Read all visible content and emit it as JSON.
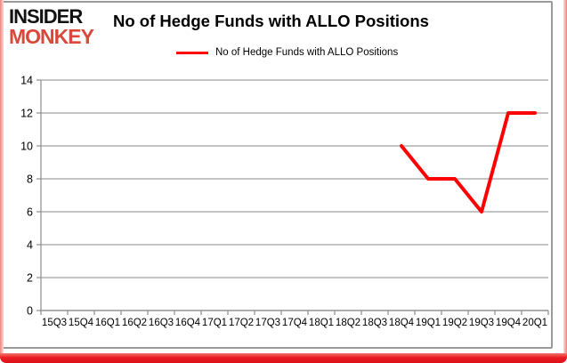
{
  "logo": {
    "line1": "INSIDER",
    "line2": "MONKEY"
  },
  "header": {
    "title": "No of Hedge Funds with ALLO Positions"
  },
  "legend": {
    "label": "No of Hedge Funds with ALLO Positions"
  },
  "colors": {
    "series": "#ff0000",
    "logo_accent": "#d9483b",
    "grid": "#a1a1a1",
    "axis": "#8c8c8c",
    "tick_text": "#000000",
    "frame_red": "#e81b22",
    "frame_pink": "#ee847d",
    "border_gray": "#9a9a9a"
  },
  "chart_data": {
    "type": "line",
    "title": "No of Hedge Funds with ALLO Positions",
    "categories": [
      "15Q3",
      "15Q4",
      "16Q1",
      "16Q2",
      "16Q3",
      "16Q4",
      "17Q1",
      "17Q2",
      "17Q3",
      "17Q4",
      "18Q1",
      "18Q2",
      "18Q3",
      "18Q4",
      "19Q1",
      "19Q2",
      "19Q3",
      "19Q4",
      "20Q1"
    ],
    "series": [
      {
        "name": "No of Hedge Funds with ALLO Positions",
        "color": "#ff0000",
        "values": [
          null,
          null,
          null,
          null,
          null,
          null,
          null,
          null,
          null,
          null,
          null,
          null,
          null,
          10,
          8,
          8,
          6,
          12,
          12
        ]
      }
    ],
    "xlabel": "",
    "ylabel": "",
    "ylim": [
      0,
      14
    ],
    "ytick_step": 2,
    "yticks": [
      0,
      2,
      4,
      6,
      8,
      10,
      12,
      14
    ],
    "grid": true,
    "legend_position": "top"
  }
}
